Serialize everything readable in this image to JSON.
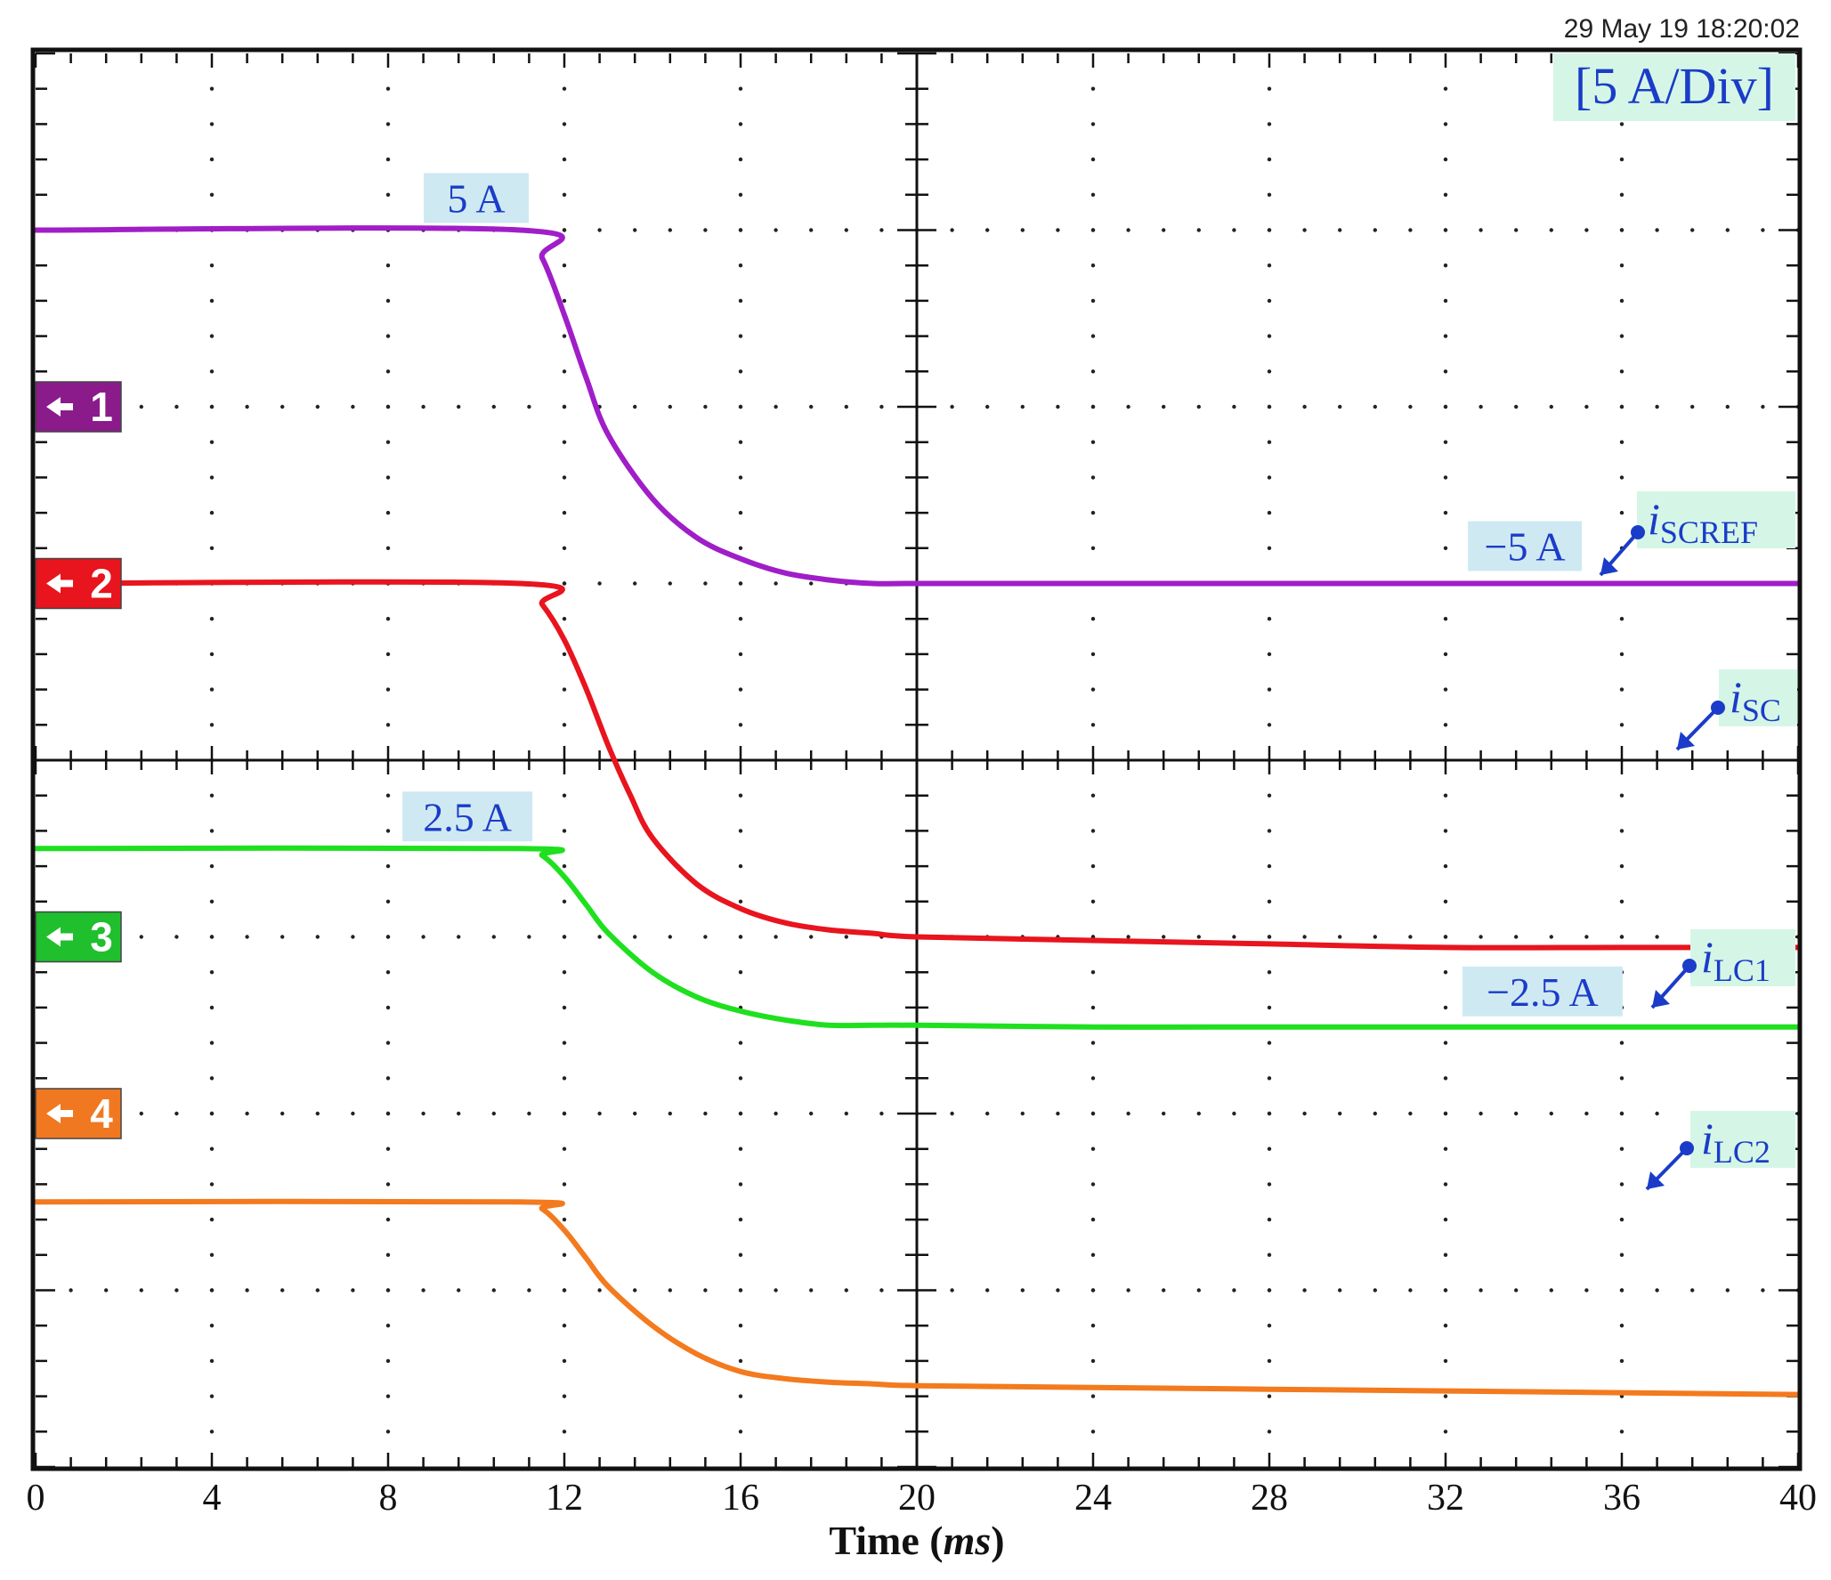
{
  "timestamp": "29 May 19  18:20:02",
  "scale_label": "[5 A/Div]",
  "chart_data": {
    "type": "line",
    "title": "",
    "xlabel_main": "Time (",
    "xlabel_unit": "ms",
    "xlabel_close": ")",
    "xlim": [
      0,
      40
    ],
    "x_ticks": [
      "0",
      "4",
      "8",
      "12",
      "16",
      "20",
      "24",
      "28",
      "32",
      "36",
      "40"
    ],
    "y_divisions": 8,
    "x_divisions": 10,
    "volts_per_div": "5 A/Div",
    "grid": true,
    "channel_markers": [
      {
        "label": "1",
        "color": "#8b1a8b",
        "level_div": 6.0
      },
      {
        "label": "2",
        "color": "#e8141e",
        "level_div": 5.0
      },
      {
        "label": "3",
        "color": "#1fbf2e",
        "level_div": 3.0
      },
      {
        "label": "4",
        "color": "#f07820",
        "level_div": 2.0
      }
    ],
    "series": [
      {
        "name_main": "i",
        "name_sub": "SCREF",
        "color": "#a01ec8",
        "x": [
          0,
          11,
          11.5,
          12,
          12.5,
          13,
          14,
          15,
          16,
          17,
          18,
          19,
          20,
          24,
          28,
          32,
          36,
          40
        ],
        "y": [
          5,
          5,
          4.2,
          2.6,
          0.8,
          -0.8,
          -2.6,
          -3.7,
          -4.3,
          -4.7,
          -4.9,
          -5.0,
          -5.0,
          -5.0,
          -5.0,
          -5.0,
          -5.0,
          -5.0
        ]
      },
      {
        "name_main": "i",
        "name_sub": "SC",
        "color": "#e8141e",
        "x": [
          0,
          11,
          11.5,
          12,
          12.5,
          13,
          13.5,
          14,
          15,
          16,
          17,
          18,
          19,
          20,
          24,
          28,
          32,
          36,
          40
        ],
        "y": [
          0,
          0,
          -0.6,
          -1.6,
          -3.0,
          -4.6,
          -6.0,
          -7.2,
          -8.5,
          -9.2,
          -9.6,
          -9.8,
          -9.9,
          -10.0,
          -10.1,
          -10.2,
          -10.3,
          -10.3,
          -10.3
        ]
      },
      {
        "name_main": "i",
        "name_sub": "LC1",
        "color": "#1fe01f",
        "x": [
          0,
          11,
          11.5,
          12,
          12.5,
          13,
          14,
          15,
          16,
          17,
          18,
          19,
          20,
          24,
          28,
          32,
          36,
          40
        ],
        "y": [
          2.5,
          2.5,
          2.3,
          1.7,
          0.9,
          0.1,
          -1.0,
          -1.7,
          -2.1,
          -2.35,
          -2.5,
          -2.5,
          -2.5,
          -2.55,
          -2.55,
          -2.55,
          -2.55,
          -2.55
        ]
      },
      {
        "name_main": "i",
        "name_sub": "LC2",
        "color": "#f37a1e",
        "x": [
          0,
          11,
          11.5,
          12,
          12.5,
          13,
          14,
          15,
          16,
          17,
          18,
          19,
          20,
          24,
          28,
          32,
          36,
          40
        ],
        "y": [
          -2.5,
          -2.5,
          -2.7,
          -3.3,
          -4.1,
          -4.9,
          -6.0,
          -6.8,
          -7.3,
          -7.5,
          -7.6,
          -7.65,
          -7.7,
          -7.75,
          -7.8,
          -7.85,
          -7.9,
          -7.95
        ]
      }
    ],
    "annotations": [
      {
        "text": "5 A"
      },
      {
        "text": "−5 A"
      },
      {
        "text": "2.5 A"
      },
      {
        "text": "−2.5 A"
      }
    ]
  }
}
